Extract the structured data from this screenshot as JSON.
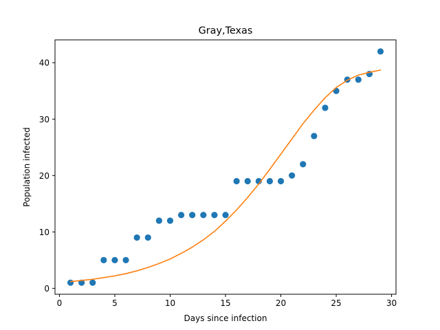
{
  "chart_data": {
    "type": "scatter",
    "title": "Gray,Texas",
    "xlabel": "Days since infection",
    "ylabel": "Population infected",
    "xlim": [
      -0.4,
      30.4
    ],
    "ylim": [
      -1.05,
      44.05
    ],
    "xticks": [
      0,
      5,
      10,
      15,
      20,
      25,
      30
    ],
    "yticks": [
      0,
      10,
      20,
      30,
      40
    ],
    "grid": false,
    "series": [
      {
        "kind": "points",
        "color": "#1f77b4",
        "x": [
          1,
          2,
          3,
          4,
          5,
          6,
          7,
          8,
          9,
          10,
          11,
          12,
          13,
          14,
          15,
          16,
          17,
          18,
          19,
          20,
          21,
          22,
          23,
          24,
          25,
          26,
          27,
          28,
          29
        ],
        "y": [
          1,
          1,
          1,
          5,
          5,
          5,
          9,
          9,
          12,
          12,
          13,
          13,
          13,
          13,
          13,
          19,
          19,
          19,
          19,
          19,
          20,
          22,
          27,
          32,
          35,
          37,
          37,
          38,
          42
        ]
      },
      {
        "kind": "line",
        "color": "#ff7f0e",
        "x": [
          1,
          2,
          3,
          4,
          5,
          6,
          7,
          8,
          9,
          10,
          11,
          12,
          13,
          14,
          15,
          16,
          17,
          18,
          19,
          20,
          21,
          22,
          23,
          24,
          25,
          26,
          27,
          28,
          29
        ],
        "y": [
          1.2,
          1.4,
          1.6,
          1.9,
          2.2,
          2.6,
          3.1,
          3.7,
          4.4,
          5.2,
          6.2,
          7.3,
          8.6,
          10.1,
          11.9,
          13.9,
          16.1,
          18.5,
          21.1,
          23.8,
          26.5,
          29.2,
          31.6,
          33.8,
          35.6,
          36.9,
          37.8,
          38.3,
          38.7
        ]
      }
    ]
  }
}
